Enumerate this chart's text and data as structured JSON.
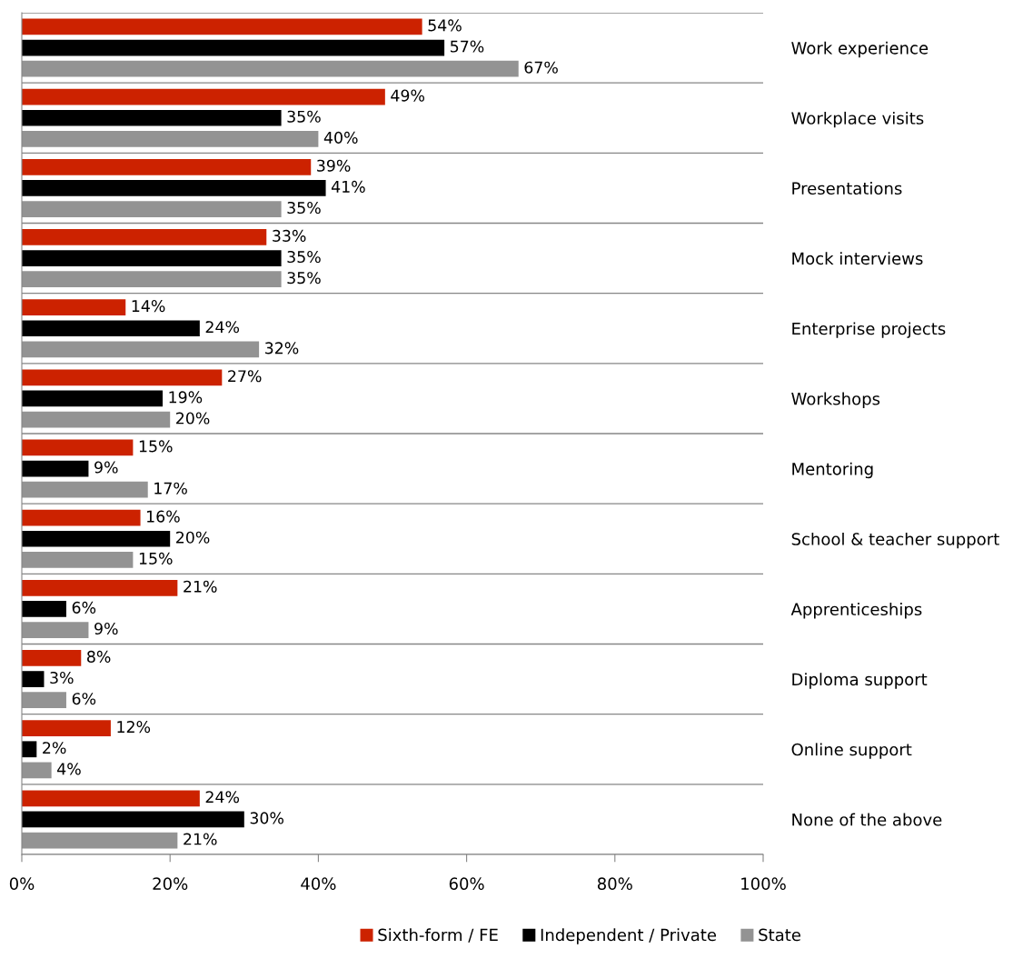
{
  "chart_data": {
    "type": "bar",
    "orientation": "horizontal",
    "categories": [
      "Work experience",
      "Workplace visits",
      "Presentations",
      "Mock interviews",
      "Enterprise projects",
      "Workshops",
      "Mentoring",
      "School & teacher support",
      "Apprenticeships",
      "Diploma support",
      "Online support",
      "None of the above"
    ],
    "series": [
      {
        "name": "Sixth-form / FE",
        "color": "#cc2200",
        "values": [
          54,
          49,
          39,
          33,
          14,
          27,
          15,
          16,
          21,
          8,
          12,
          24
        ],
        "value_labels": [
          "54%",
          "49%",
          "39%",
          "33%",
          "14%",
          "27%",
          "15%",
          "16%",
          "21%",
          "8%",
          "12%",
          "24%"
        ]
      },
      {
        "name": "Independent / Private",
        "color": "#000000",
        "values": [
          57,
          35,
          41,
          35,
          24,
          19,
          9,
          20,
          6,
          3,
          2,
          30
        ],
        "value_labels": [
          "57%",
          "35%",
          "41%",
          "35%",
          "24%",
          "19%",
          "9%",
          "20%",
          "6%",
          "3%",
          "2%",
          "30%"
        ]
      },
      {
        "name": "State",
        "color": "#939393",
        "values": [
          67,
          40,
          35,
          35,
          32,
          20,
          17,
          15,
          9,
          6,
          4,
          21
        ],
        "value_labels": [
          "67%",
          "40%",
          "35%",
          "35%",
          "32%",
          "20%",
          "17%",
          "15%",
          "9%",
          "6%",
          "4%",
          "21%"
        ]
      }
    ],
    "xlim": [
      0,
      100
    ],
    "xticks": [
      {
        "value": 0,
        "label": "0%"
      },
      {
        "value": 20,
        "label": "20%"
      },
      {
        "value": 40,
        "label": "40%"
      },
      {
        "value": 60,
        "label": "60%"
      },
      {
        "value": 80,
        "label": "80%"
      },
      {
        "value": 100,
        "label": "100%"
      }
    ],
    "grid": "y",
    "legend": "bottom"
  }
}
